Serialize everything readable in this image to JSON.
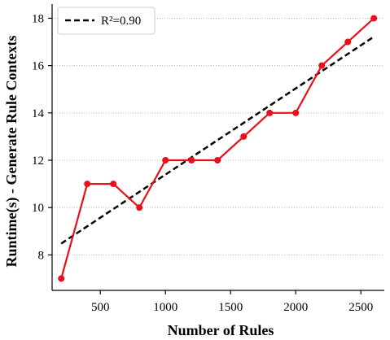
{
  "chart_data": {
    "type": "line",
    "title": "",
    "xlabel": "Number of Rules",
    "ylabel": "Runtime(s) - Generate Rule Contexts",
    "xlim": [
      130,
      2680
    ],
    "ylim": [
      6.5,
      18.6
    ],
    "xticks": [
      500,
      1000,
      1500,
      2000,
      2500
    ],
    "yticks": [
      8,
      10,
      12,
      14,
      16,
      18
    ],
    "grid": "horizontal-dotted",
    "legend_position": "top-left",
    "colors": {
      "data": "#e8101a",
      "fit": "#000000",
      "grid": "#b8b8b8"
    },
    "series": [
      {
        "values_x": [
          200,
          400,
          600,
          800,
          1000,
          1200,
          1400,
          1600,
          1800,
          2000,
          2200,
          2400,
          2600
        ],
        "values_y": [
          7,
          11,
          11,
          10,
          12,
          12,
          12,
          13,
          14,
          14,
          16,
          17,
          18
        ]
      }
    ],
    "fit_line": {
      "name": "R²=0.90",
      "x": [
        200,
        2600
      ],
      "y": [
        8.48,
        17.22
      ]
    }
  }
}
